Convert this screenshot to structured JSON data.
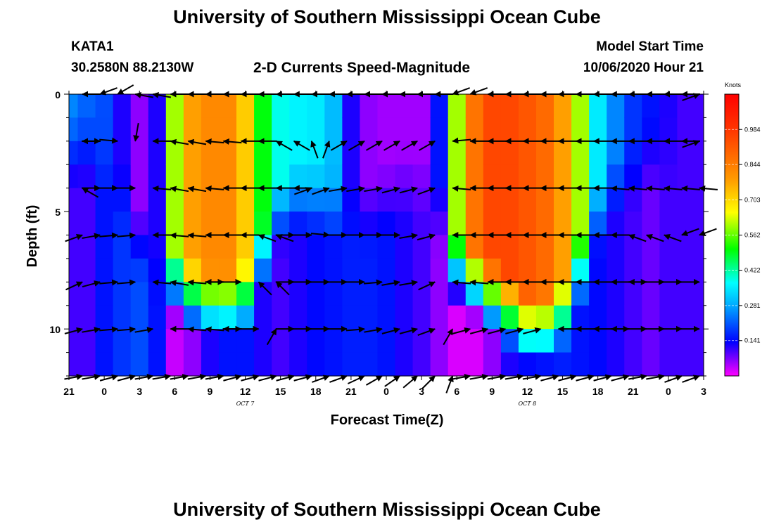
{
  "title_top": "University of Southern Mississippi Ocean Cube",
  "title_bottom": "University of Southern Mississippi Ocean Cube",
  "station": {
    "id": "KATA1",
    "coords": "30.2580N 88.2130W"
  },
  "plot_title": "2-D Currents Speed-Magnitude",
  "model_start": {
    "label": "Model Start Time",
    "value": "10/06/2020 Hour 21"
  },
  "chart_data": {
    "type": "heatmap",
    "title": "2-D Currents Speed-Magnitude",
    "xlabel": "Forecast Time(Z)",
    "ylabel": "Depth (ft)",
    "colorbar_unit": "Knots",
    "colorbar_ticks": [
      "0.984",
      "0.844",
      "0.703",
      "0.562",
      "0.422",
      "0.281",
      "0.141"
    ],
    "colorbar_range": [
      0,
      1.125
    ],
    "x_tick_labels": [
      "21",
      "0",
      "3",
      "6",
      "9",
      "12",
      "15",
      "18",
      "21",
      "0",
      "3",
      "6",
      "9",
      "12",
      "15",
      "18",
      "21",
      "0",
      "3"
    ],
    "x_range_hours": [
      0,
      54
    ],
    "date_labels": [
      {
        "text": "OCT 7",
        "hour": 15
      },
      {
        "text": "OCT 8",
        "hour": 39
      }
    ],
    "y_tick_labels": [
      "0",
      "5",
      "10"
    ],
    "y_range_ft": [
      0,
      12
    ],
    "speed_profile": {
      "hours": [
        0,
        1.5,
        3,
        4.5,
        6,
        7.5,
        9,
        10.5,
        12,
        13.5,
        15,
        16.5,
        18,
        19.5,
        21,
        22.5,
        24,
        25.5,
        27,
        28.5,
        30,
        31.5,
        33,
        34.5,
        36,
        37.5,
        39,
        40.5,
        42,
        43.5,
        45,
        46.5,
        48,
        49.5,
        51,
        52.5,
        54
      ],
      "surface": [
        0.25,
        0.22,
        0.2,
        0.12,
        0.06,
        0.12,
        0.6,
        0.78,
        0.82,
        0.82,
        0.72,
        0.5,
        0.38,
        0.36,
        0.35,
        0.3,
        0.12,
        0.06,
        0.05,
        0.05,
        0.05,
        0.15,
        0.6,
        0.86,
        0.95,
        0.95,
        0.92,
        0.88,
        0.78,
        0.6,
        0.35,
        0.25,
        0.18,
        0.15,
        0.12,
        0.1,
        0.1
      ],
      "bottom": [
        0.1,
        0.1,
        0.15,
        0.18,
        0.2,
        0.15,
        0.03,
        0.06,
        0.12,
        0.15,
        0.15,
        0.12,
        0.1,
        0.12,
        0.14,
        0.15,
        0.16,
        0.16,
        0.15,
        0.12,
        0.1,
        0.06,
        0.02,
        0.02,
        0.06,
        0.12,
        0.14,
        0.15,
        0.16,
        0.15,
        0.14,
        0.12,
        0.1,
        0.08,
        0.1,
        0.1,
        0.1
      ],
      "depth_decay": [
        0.08,
        0.08,
        0.12,
        0.25,
        0.4,
        0.5,
        0.55,
        0.6,
        0.62,
        0.62,
        0.6,
        0.45,
        0.3,
        0.25,
        0.25,
        0.28,
        0.3,
        0.3,
        0.25,
        0.2,
        0.2,
        0.3,
        0.5,
        0.55,
        0.6,
        0.65,
        0.7,
        0.7,
        0.65,
        0.5,
        0.3,
        0.2,
        0.15,
        0.1,
        0.1,
        0.08,
        0.08
      ]
    },
    "vector_depths_ft": [
      0,
      2,
      4,
      6,
      8,
      10,
      12
    ],
    "vector_hours": [
      1.5,
      3,
      4.5,
      6,
      7.5,
      9,
      10.5,
      12,
      13.5,
      15,
      16.5,
      18,
      19.5,
      21,
      22.5,
      24,
      25.5,
      27,
      28.5,
      30,
      31.5,
      33,
      34.5,
      36,
      37.5,
      39,
      40.5,
      42,
      43.5,
      45,
      46.5,
      48,
      49.5,
      51,
      52.5,
      54
    ],
    "vector_directions_deg": {
      "0": [
        180,
        200,
        210,
        170,
        170,
        180,
        180,
        180,
        180,
        180,
        180,
        180,
        180,
        180,
        180,
        180,
        180,
        180,
        180,
        180,
        180,
        200,
        200,
        180,
        180,
        180,
        180,
        180,
        180,
        180,
        180,
        180,
        180,
        180,
        180,
        20
      ],
      "2": [
        180,
        0,
        355,
        260,
        180,
        170,
        170,
        175,
        175,
        180,
        180,
        150,
        150,
        110,
        70,
        30,
        30,
        30,
        30,
        30,
        30,
        185,
        180,
        180,
        180,
        180,
        180,
        180,
        180,
        180,
        180,
        180,
        180,
        180,
        180,
        20
      ],
      "4": [
        150,
        0,
        0,
        0,
        175,
        170,
        170,
        175,
        180,
        180,
        180,
        180,
        180,
        20,
        20,
        10,
        10,
        10,
        15,
        15,
        20,
        175,
        180,
        180,
        180,
        180,
        180,
        180,
        180,
        180,
        175,
        175,
        175,
        175,
        175,
        175
      ],
      "6": [
        20,
        10,
        5,
        5,
        180,
        175,
        175,
        180,
        180,
        180,
        160,
        160,
        0,
        0,
        355,
        0,
        0,
        0,
        0,
        10,
        15,
        180,
        180,
        180,
        180,
        180,
        180,
        180,
        180,
        180,
        180,
        160,
        160,
        160,
        200,
        200
      ],
      "8": [
        25,
        15,
        5,
        5,
        175,
        170,
        175,
        180,
        0,
        0,
        135,
        135,
        0,
        0,
        0,
        0,
        0,
        5,
        10,
        10,
        25,
        175,
        175,
        180,
        180,
        180,
        180,
        180,
        180,
        180,
        180,
        180,
        0,
        0,
        0,
        0
      ],
      "10": [
        15,
        10,
        5,
        5,
        10,
        180,
        175,
        175,
        180,
        0,
        0,
        60,
        0,
        0,
        0,
        0,
        5,
        10,
        15,
        15,
        20,
        60,
        15,
        15,
        15,
        15,
        15,
        180,
        180,
        180,
        180,
        0,
        0,
        0,
        0,
        0
      ],
      "12": [
        10,
        10,
        15,
        15,
        10,
        10,
        10,
        10,
        10,
        15,
        15,
        15,
        15,
        15,
        20,
        20,
        25,
        30,
        35,
        40,
        45,
        70,
        10,
        10,
        10,
        10,
        10,
        15,
        15,
        15,
        15,
        15,
        10,
        10,
        20,
        20
      ]
    }
  }
}
